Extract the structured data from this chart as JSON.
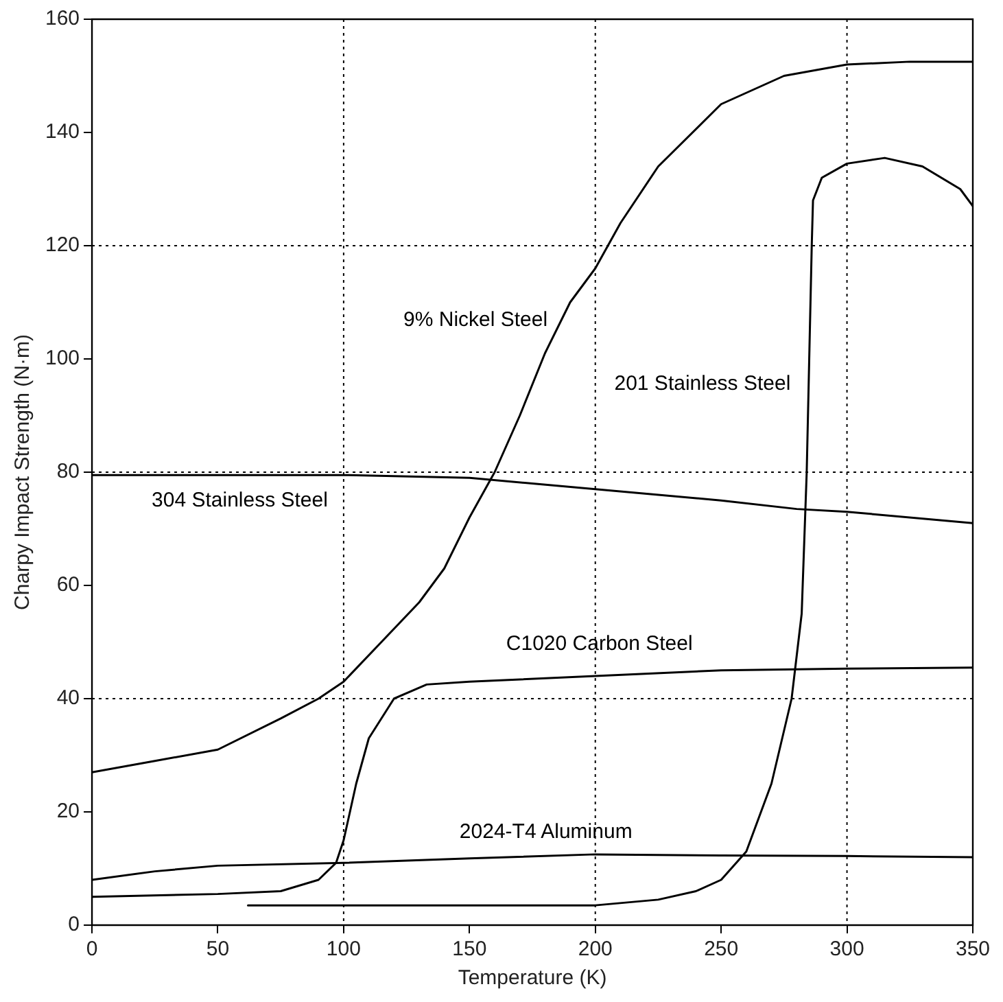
{
  "chart_data": {
    "type": "line",
    "xlabel": "Temperature (K)",
    "ylabel": "Charpy Impact Strength (N·m)",
    "xlim": [
      0,
      350
    ],
    "xticks": [
      0,
      50,
      100,
      150,
      200,
      250,
      300,
      350
    ],
    "ylim": [
      0,
      160
    ],
    "yticks": [
      0,
      20,
      40,
      60,
      80,
      100,
      120,
      140,
      160
    ],
    "grid": false,
    "legend": false,
    "marker": "none",
    "line_style": "solid",
    "series": [
      {
        "name": "9% Nickel Steel",
        "color": "#000000",
        "x": [
          0,
          25,
          50,
          75,
          90,
          100,
          115,
          130,
          140,
          150,
          160,
          170,
          180,
          190,
          200,
          210,
          225,
          250,
          275,
          300,
          325,
          350
        ],
        "values": [
          27,
          29,
          31,
          36.5,
          40,
          43,
          50,
          57,
          63,
          72,
          80,
          90,
          101,
          110,
          116,
          124,
          134,
          145,
          150,
          152,
          152.5,
          152.5
        ]
      },
      {
        "name": "304 Stainless Steel",
        "color": "#000000",
        "x": [
          0,
          50,
          100,
          150,
          200,
          250,
          280,
          300,
          350
        ],
        "values": [
          79.5,
          79.5,
          79.5,
          79,
          77,
          75,
          73.5,
          73,
          71
        ]
      },
      {
        "name": "C1020 Carbon Steel",
        "color": "#000000",
        "x": [
          0,
          50,
          75,
          90,
          97,
          100,
          105,
          110,
          120,
          133,
          150,
          200,
          250,
          300,
          350
        ],
        "values": [
          5,
          5.5,
          6,
          8,
          11,
          15,
          25,
          33,
          40,
          42.5,
          43,
          44,
          45,
          45.3,
          45.5
        ]
      },
      {
        "name": "2024-T4 Aluminum",
        "color": "#000000",
        "x": [
          0,
          25,
          50,
          100,
          150,
          200,
          250,
          300,
          350
        ],
        "values": [
          8,
          9.5,
          10.5,
          11,
          11.8,
          12.5,
          12.3,
          12.2,
          12
        ]
      },
      {
        "name": "201 Stainless Steel",
        "color": "#000000",
        "x": [
          62,
          100,
          200,
          225,
          240,
          250,
          260,
          270,
          278,
          282,
          284,
          285,
          286,
          286.5,
          290,
          300,
          315,
          330,
          345,
          350
        ],
        "values": [
          3.5,
          3.5,
          3.5,
          4.5,
          6,
          8,
          13,
          25,
          40,
          55,
          80,
          100,
          120,
          128,
          132,
          134.5,
          135.5,
          134,
          130,
          127
        ]
      }
    ],
    "ref_lines": [
      {
        "axis": "x",
        "value": 100,
        "line_style": "dotted",
        "color": "#000000"
      },
      {
        "axis": "x",
        "value": 200,
        "line_style": "dotted",
        "color": "#000000"
      },
      {
        "axis": "x",
        "value": 300,
        "line_style": "dotted",
        "color": "#000000"
      },
      {
        "axis": "y",
        "value": 40,
        "line_style": "dotted",
        "color": "#000000"
      },
      {
        "axis": "y",
        "value": 80,
        "line_style": "dotted",
        "color": "#000000"
      },
      {
        "axis": "y",
        "value": 120,
        "line_style": "dotted",
        "color": "#000000"
      }
    ]
  }
}
